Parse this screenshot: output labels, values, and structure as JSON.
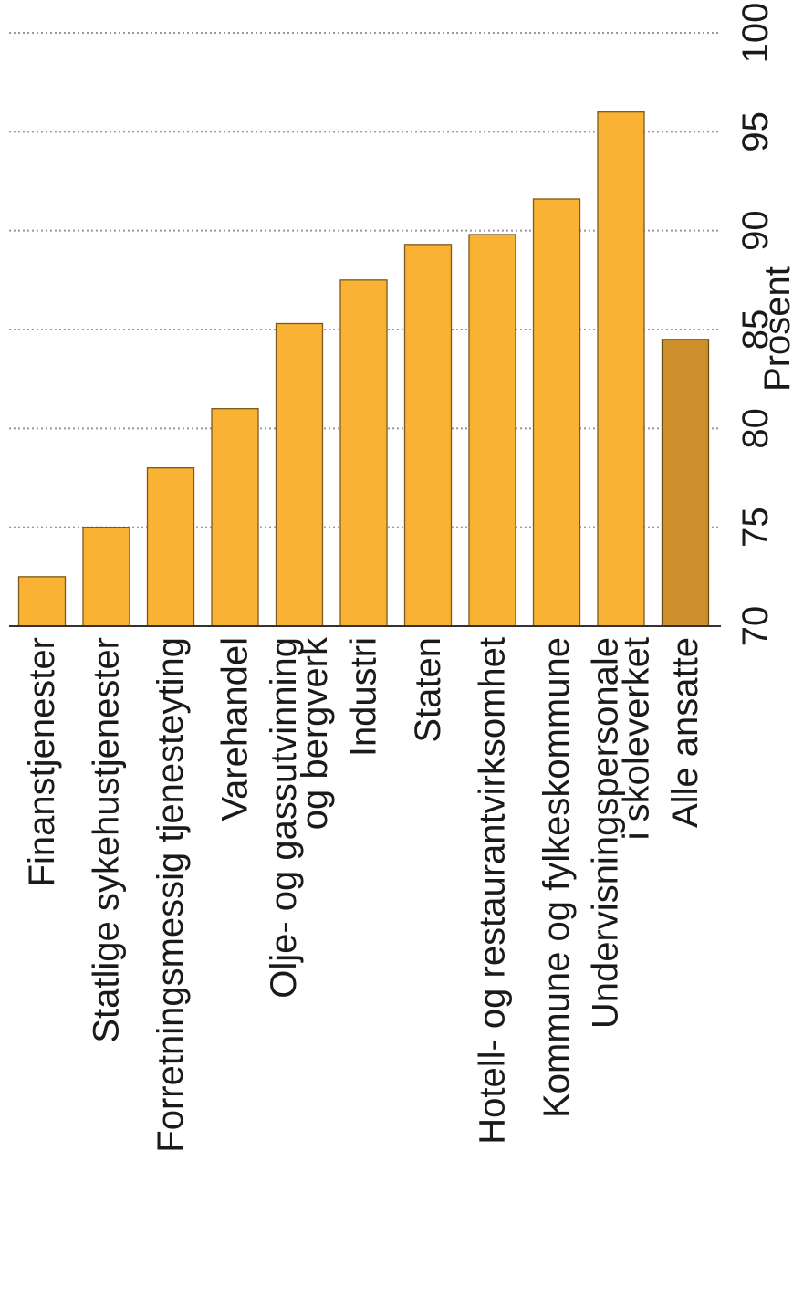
{
  "chart_data": {
    "type": "bar",
    "orientation": "vertical-bars-rotated-90",
    "categories": [
      [
        "Finanstjenester"
      ],
      [
        "Statlige sykehustjenester"
      ],
      [
        "Forretningsmessig tjenesteyting"
      ],
      [
        "Varehandel"
      ],
      [
        "Olje- og gassutvinning",
        "og bergverk"
      ],
      [
        "Industri"
      ],
      [
        "Staten"
      ],
      [
        "Hotell- og restaurantvirksomhet"
      ],
      [
        "Kommune og fylkeskommune"
      ],
      [
        "Undervisningspersonale",
        "i skoleverket"
      ],
      [
        "Alle ansatte"
      ]
    ],
    "values": [
      72.5,
      75.0,
      78.0,
      81.0,
      85.3,
      87.5,
      89.3,
      89.8,
      91.6,
      96.0,
      84.5
    ],
    "highlight_index": 10,
    "ylim": [
      70,
      100
    ],
    "yticks": [
      "70",
      "75",
      "80",
      "85",
      "90",
      "95",
      "100"
    ],
    "ylabel": "Prosent",
    "xlabel": "",
    "title": "",
    "grid": true,
    "colors": {
      "bar": "#f9b233",
      "highlight": "#cc8f2c",
      "grid": "#9a9a9a"
    }
  }
}
